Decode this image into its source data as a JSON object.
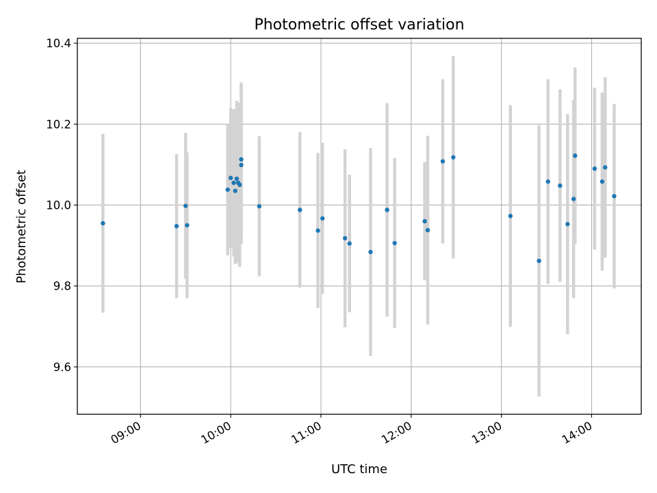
{
  "chart_data": {
    "type": "scatter",
    "title": "Photometric offset variation",
    "xlabel": "UTC time",
    "ylabel": "Photometric offset",
    "x_tick_labels": [
      "09:00",
      "10:00",
      "11:00",
      "12:00",
      "13:00",
      "14:00"
    ],
    "y_tick_labels": [
      "9.6",
      "9.8",
      "10.0",
      "10.2",
      "10.4"
    ],
    "y_ticks": [
      9.6,
      9.8,
      10.0,
      10.2,
      10.4
    ],
    "xlim": [
      "08:18",
      "14:33"
    ],
    "ylim": [
      9.483,
      10.412
    ],
    "grid": true,
    "marker_color": "#1f77b4",
    "errorbar_color": "#d3d3d3",
    "points": [
      {
        "x": "08:35",
        "y": 9.955,
        "yerr": 0.221
      },
      {
        "x": "09:24",
        "y": 9.948,
        "yerr": 0.178
      },
      {
        "x": "09:30",
        "y": 9.998,
        "yerr": 0.18
      },
      {
        "x": "09:31",
        "y": 9.95,
        "yerr": 0.18
      },
      {
        "x": "09:58",
        "y": 10.038,
        "yerr": 0.162
      },
      {
        "x": "10:00",
        "y": 10.067,
        "yerr": 0.173
      },
      {
        "x": "10:02",
        "y": 10.055,
        "yerr": 0.182
      },
      {
        "x": "10:03",
        "y": 10.035,
        "yerr": 0.181
      },
      {
        "x": "10:04",
        "y": 10.065,
        "yerr": 0.193
      },
      {
        "x": "10:05",
        "y": 10.055,
        "yerr": 0.198
      },
      {
        "x": "10:06",
        "y": 10.05,
        "yerr": 0.203
      },
      {
        "x": "10:07",
        "y": 10.113,
        "yerr": 0.19
      },
      {
        "x": "10:07",
        "y": 10.099,
        "yerr": 0.196
      },
      {
        "x": "10:19",
        "y": 9.997,
        "yerr": 0.173
      },
      {
        "x": "10:46",
        "y": 9.988,
        "yerr": 0.192
      },
      {
        "x": "10:58",
        "y": 9.937,
        "yerr": 0.192
      },
      {
        "x": "11:01",
        "y": 9.967,
        "yerr": 0.187
      },
      {
        "x": "11:16",
        "y": 9.918,
        "yerr": 0.22
      },
      {
        "x": "11:19",
        "y": 9.905,
        "yerr": 0.17
      },
      {
        "x": "11:33",
        "y": 9.884,
        "yerr": 0.257
      },
      {
        "x": "11:44",
        "y": 9.988,
        "yerr": 0.264
      },
      {
        "x": "11:49",
        "y": 9.906,
        "yerr": 0.21
      },
      {
        "x": "12:09",
        "y": 9.96,
        "yerr": 0.146
      },
      {
        "x": "12:11",
        "y": 9.938,
        "yerr": 0.233
      },
      {
        "x": "12:21",
        "y": 10.108,
        "yerr": 0.203
      },
      {
        "x": "12:28",
        "y": 10.118,
        "yerr": 0.25
      },
      {
        "x": "13:06",
        "y": 9.973,
        "yerr": 0.274
      },
      {
        "x": "13:25",
        "y": 9.862,
        "yerr": 0.335
      },
      {
        "x": "13:31",
        "y": 10.058,
        "yerr": 0.253
      },
      {
        "x": "13:39",
        "y": 10.048,
        "yerr": 0.238
      },
      {
        "x": "13:44",
        "y": 9.953,
        "yerr": 0.272
      },
      {
        "x": "13:48",
        "y": 10.015,
        "yerr": 0.245
      },
      {
        "x": "13:49",
        "y": 10.122,
        "yerr": 0.218
      },
      {
        "x": "14:02",
        "y": 10.09,
        "yerr": 0.2
      },
      {
        "x": "14:07",
        "y": 10.058,
        "yerr": 0.22
      },
      {
        "x": "14:09",
        "y": 10.093,
        "yerr": 0.223
      },
      {
        "x": "14:15",
        "y": 10.022,
        "yerr": 0.228
      }
    ]
  }
}
